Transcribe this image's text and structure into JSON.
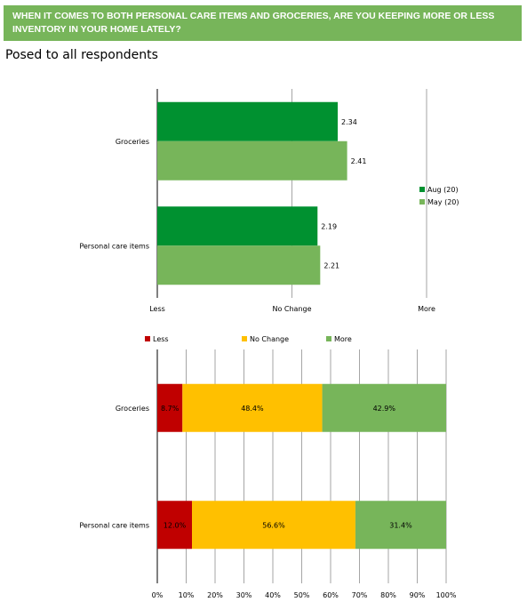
{
  "banner": {
    "title": "WHEN IT COMES TO BOTH PERSONAL CARE ITEMS AND GROCERIES, ARE YOU KEEPING MORE OR LESS INVENTORY IN YOUR HOME LATELY?"
  },
  "subtitle": "Posed to all respondents",
  "colors": {
    "banner": "#77b55a",
    "aug": "#009130",
    "may": "#77b55a",
    "less": "#c00000",
    "nochange": "#ffc000",
    "more": "#77b55a"
  },
  "chart_data": [
    {
      "type": "bar",
      "orientation": "horizontal",
      "categories": [
        "Groceries",
        "Personal care items"
      ],
      "series": [
        {
          "name": "Aug (20)",
          "values": [
            2.34,
            2.19
          ]
        },
        {
          "name": "May (20)",
          "values": [
            2.41,
            2.21
          ]
        }
      ],
      "xlim": [
        1,
        3
      ],
      "x_tick_labels": [
        "Less",
        "No Change",
        "More"
      ],
      "legend": "right",
      "data_labels": true
    },
    {
      "type": "bar",
      "orientation": "horizontal",
      "stacked": true,
      "percent": true,
      "categories": [
        "Groceries",
        "Personal care items"
      ],
      "series": [
        {
          "name": "Less",
          "values": [
            8.7,
            12.0
          ],
          "labels": [
            "8.7%",
            "12.0%"
          ]
        },
        {
          "name": "No Change",
          "values": [
            48.4,
            56.6
          ],
          "labels": [
            "48.4%",
            "56.6%"
          ]
        },
        {
          "name": "More",
          "values": [
            42.9,
            31.4
          ],
          "labels": [
            "42.9%",
            "31.4%"
          ]
        }
      ],
      "xlim": [
        0,
        100
      ],
      "x_tick_labels": [
        "0%",
        "10%",
        "20%",
        "30%",
        "40%",
        "50%",
        "60%",
        "70%",
        "80%",
        "90%",
        "100%"
      ],
      "legend": "top",
      "grid": true
    }
  ]
}
